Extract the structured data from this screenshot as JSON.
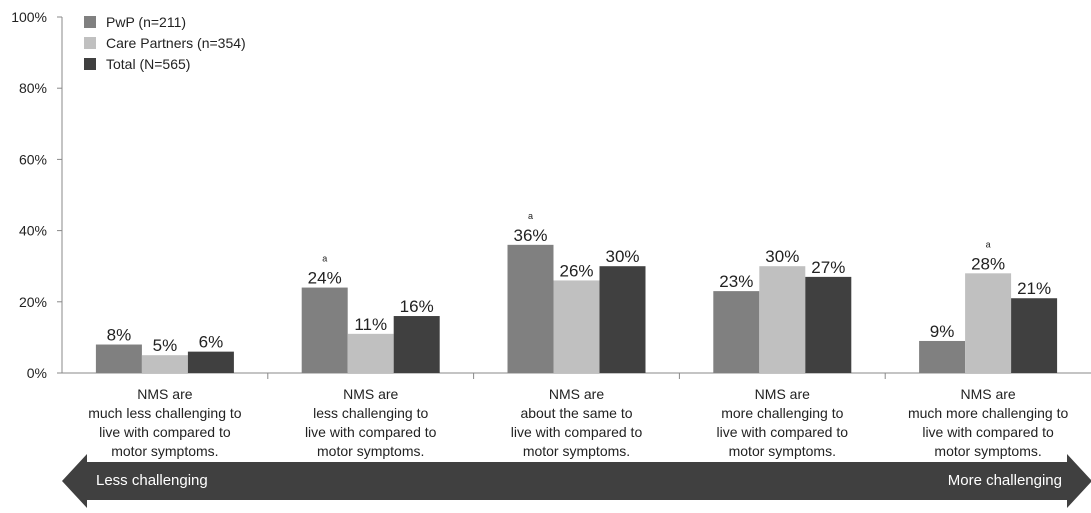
{
  "chart_data": {
    "type": "bar",
    "categories": [
      [
        "NMS are",
        "much less challenging to",
        "live with compared to",
        "motor symptoms."
      ],
      [
        "NMS are",
        "less challenging to",
        "live with compared to",
        "motor symptoms."
      ],
      [
        "NMS are",
        "about the same to",
        "live with compared to",
        "motor symptoms."
      ],
      [
        "NMS are",
        "more challenging to",
        "live with compared to",
        "motor symptoms."
      ],
      [
        "NMS are",
        "much more challenging to",
        "live with compared to",
        "motor symptoms."
      ]
    ],
    "series": [
      {
        "name": "PwP (n=211)",
        "color": "#808080",
        "values": [
          8,
          24,
          36,
          23,
          9
        ],
        "labels": [
          "8%",
          "24%",
          "36%",
          "23%",
          "9%"
        ]
      },
      {
        "name": "Care Partners (n=354)",
        "color": "#c0c0c0",
        "values": [
          5,
          11,
          26,
          30,
          28
        ],
        "labels": [
          "5%",
          "11%",
          "26%",
          "30%",
          "28%"
        ]
      },
      {
        "name": "Total (N=565)",
        "color": "#404040",
        "values": [
          6,
          16,
          30,
          27,
          21
        ],
        "labels": [
          "6%",
          "16%",
          "30%",
          "27%",
          "21%"
        ]
      }
    ],
    "annotations": [
      {
        "category_index": 1,
        "series_index": 0,
        "text": "a"
      },
      {
        "category_index": 2,
        "series_index": 0,
        "text": "a"
      },
      {
        "category_index": 4,
        "series_index": 1,
        "text": "a"
      }
    ],
    "ylim": [
      0,
      100
    ],
    "yticks": [
      0,
      20,
      40,
      60,
      80,
      100
    ],
    "ytick_labels": [
      "0%",
      "20%",
      "40%",
      "60%",
      "80%",
      "100%"
    ],
    "grid": false,
    "legend_position": "top-left"
  },
  "arrow": {
    "left_label": "Less challenging",
    "right_label": "More challenging",
    "color": "#404040"
  }
}
